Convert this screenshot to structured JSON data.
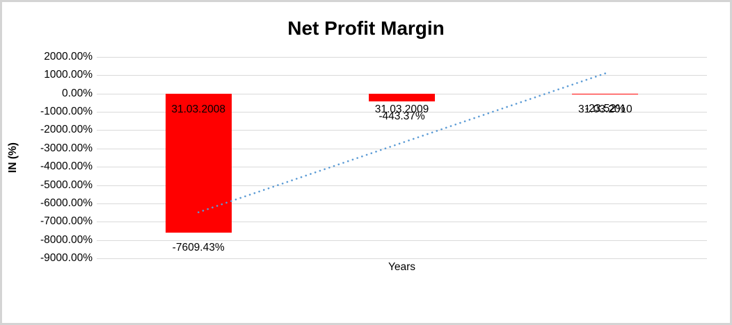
{
  "title": "Net Profit Margin",
  "y_axis": {
    "label": "IN (%)",
    "ticks": [
      "2000.00%",
      "1000.00%",
      "0.00%",
      "-1000.00%",
      "-2000.00%",
      "-3000.00%",
      "-4000.00%",
      "-5000.00%",
      "-6000.00%",
      "-7000.00%",
      "-8000.00%",
      "-9000.00%"
    ]
  },
  "x_axis": {
    "label": "Years"
  },
  "chart_data": {
    "type": "bar",
    "title": "Net Profit Margin",
    "categories": [
      "31.03.2008",
      "31.03.2009",
      "31.03.2010"
    ],
    "values": [
      -7609.43,
      -443.37,
      -23.52
    ],
    "data_labels": [
      "-7609.43%",
      "-443.37%",
      "-23.52%"
    ],
    "xlabel": "Years",
    "ylabel": "IN (%)",
    "ylim": [
      -9000,
      2000
    ],
    "y_tick_step": 1000,
    "grid": true,
    "legend": "none",
    "bar_color": "#FF0000",
    "trendline": {
      "type": "linear",
      "style": "dotted",
      "color": "#5B9BD5"
    }
  }
}
